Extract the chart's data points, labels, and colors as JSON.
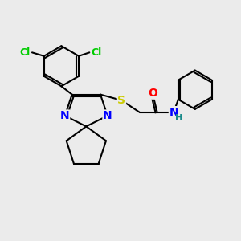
{
  "bg_color": "#ebebeb",
  "bond_color": "#000000",
  "atom_colors": {
    "Cl": "#00cc00",
    "O": "#ff0000",
    "N": "#0000ff",
    "S": "#cccc00",
    "H": "#1a8a8a"
  },
  "lw": 1.5
}
